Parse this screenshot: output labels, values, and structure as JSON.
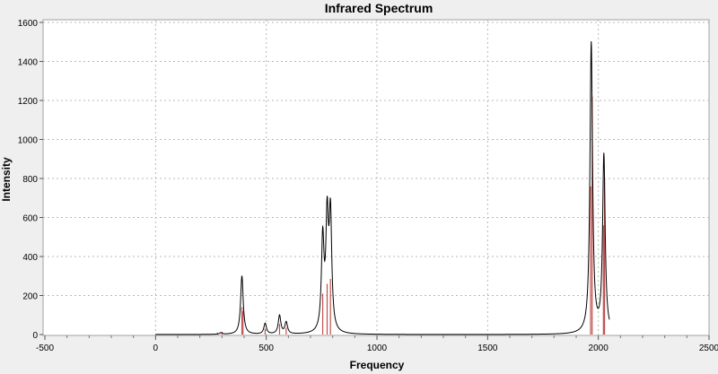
{
  "chart_data": {
    "type": "line",
    "title": "Infrared Spectrum",
    "xlabel": "Frequency",
    "ylabel": "Intensity",
    "xlim": [
      -500,
      2500
    ],
    "ylim": [
      0,
      1600
    ],
    "x_ticks": [
      -500,
      0,
      500,
      1000,
      1500,
      2000,
      2500
    ],
    "y_ticks": [
      0,
      200,
      400,
      600,
      800,
      1000,
      1200,
      1400,
      1600
    ],
    "grid": true,
    "series": [
      {
        "color": "#000000",
        "style": "spectrum-curve",
        "x_range": [
          0,
          2050
        ],
        "peaks": [
          {
            "x": 295,
            "y": 8
          },
          {
            "x": 390,
            "y": 300
          },
          {
            "x": 495,
            "y": 55
          },
          {
            "x": 560,
            "y": 95
          },
          {
            "x": 590,
            "y": 60
          },
          {
            "x": 755,
            "y": 470
          },
          {
            "x": 775,
            "y": 555
          },
          {
            "x": 790,
            "y": 580
          },
          {
            "x": 1968,
            "y": 1490
          },
          {
            "x": 2025,
            "y": 910
          }
        ]
      },
      {
        "color": "#c0504d",
        "style": "stick",
        "points": [
          {
            "x": 280,
            "y": 10
          },
          {
            "x": 300,
            "y": 14
          },
          {
            "x": 390,
            "y": 140
          },
          {
            "x": 395,
            "y": 120
          },
          {
            "x": 495,
            "y": 30
          },
          {
            "x": 560,
            "y": 55
          },
          {
            "x": 590,
            "y": 35
          },
          {
            "x": 755,
            "y": 210
          },
          {
            "x": 775,
            "y": 260
          },
          {
            "x": 790,
            "y": 285
          },
          {
            "x": 1965,
            "y": 760
          },
          {
            "x": 1972,
            "y": 1220
          },
          {
            "x": 2023,
            "y": 560
          },
          {
            "x": 2028,
            "y": 800
          }
        ]
      }
    ]
  }
}
